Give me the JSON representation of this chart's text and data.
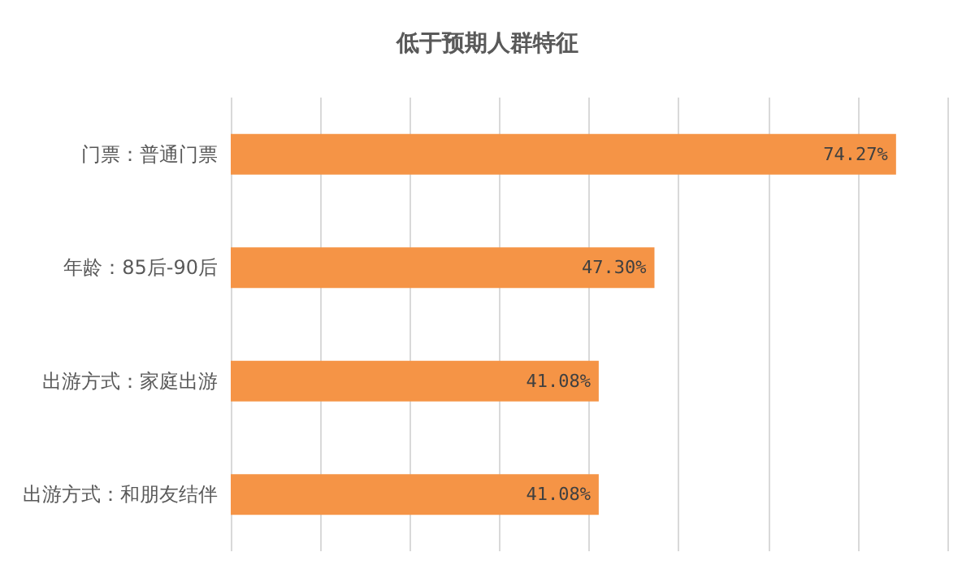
{
  "chart_data": {
    "type": "bar",
    "orientation": "horizontal",
    "title": "低于预期人群特征",
    "categories": [
      "门票：普通门票",
      "年龄：85后-90后",
      "出游方式：家庭出游",
      "出游方式：和朋友结伴"
    ],
    "values": [
      74.27,
      47.3,
      41.08,
      41.08
    ],
    "value_labels": [
      "74.27%",
      "47.30%",
      "41.08%",
      "41.08%"
    ],
    "color": "#f59446",
    "xlim": [
      0,
      80
    ],
    "xticks": [
      {
        "value": 0,
        "label": null
      },
      {
        "value": 10,
        "label": null
      },
      {
        "value": 20,
        "label": null
      },
      {
        "value": 30,
        "label": null
      },
      {
        "value": 40,
        "label": null
      },
      {
        "value": 50,
        "label": null
      },
      {
        "value": 60,
        "label": null
      },
      {
        "value": 70,
        "label": null
      },
      {
        "value": 80,
        "label": null
      }
    ],
    "tick_labels": "y",
    "grid": "x"
  }
}
